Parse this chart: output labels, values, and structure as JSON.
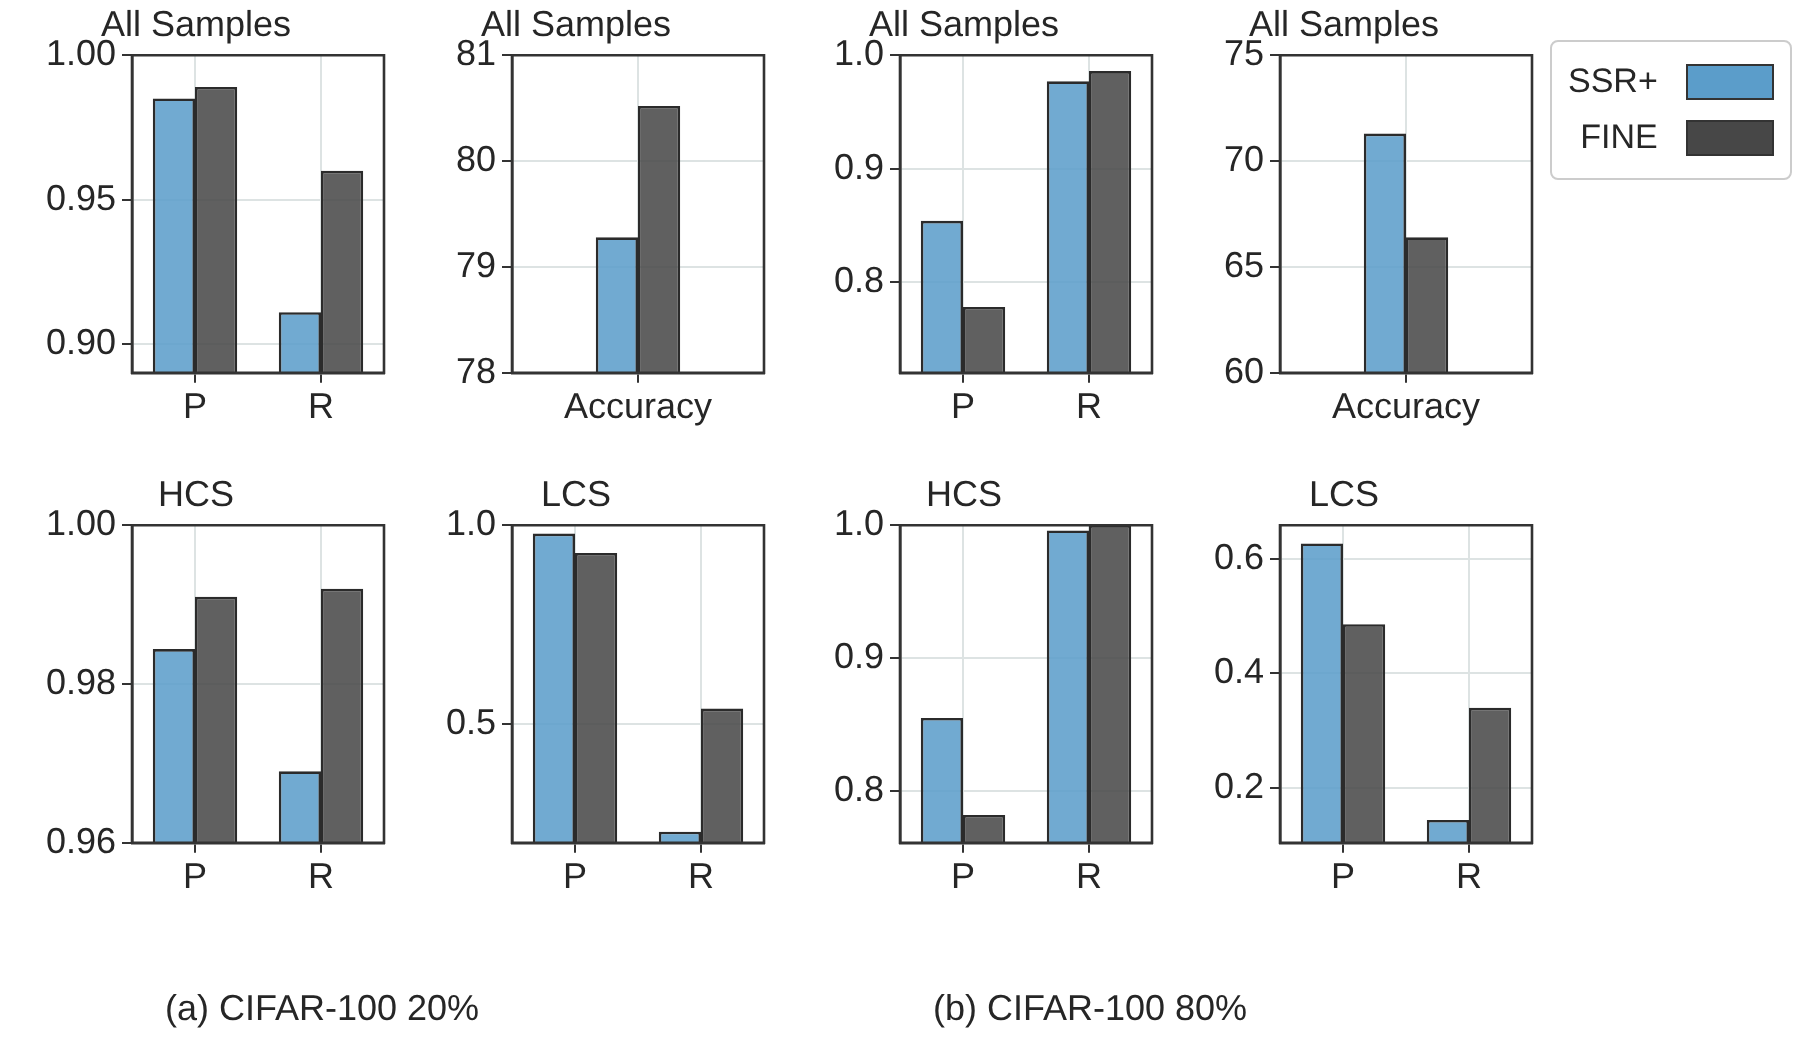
{
  "chart_data": [
    {
      "type": "bar",
      "title": "All Samples",
      "categories": [
        "P",
        "R"
      ],
      "series": [
        {
          "color": "#5b9dca",
          "values": [
            0.985,
            0.911
          ]
        },
        {
          "color": "#474747",
          "values": [
            0.989,
            0.96
          ]
        }
      ],
      "ylim": [
        0.89,
        1.0
      ],
      "yticks": [
        {
          "value": 0.9,
          "label": "0.90"
        },
        {
          "value": 0.95,
          "label": "0.95"
        },
        {
          "value": 1.0,
          "label": "1.00"
        }
      ],
      "grid": true,
      "annotations": [
        "(a) CIFAR-100 20%"
      ]
    },
    {
      "type": "bar",
      "title": "All Samples",
      "categories": [
        "Accuracy"
      ],
      "series": [
        {
          "color": "#5b9dca",
          "values": [
            79.28
          ]
        },
        {
          "color": "#474747",
          "values": [
            80.52
          ]
        }
      ],
      "ylim": [
        78,
        81
      ],
      "yticks": [
        78,
        79,
        80,
        81
      ],
      "grid": true
    },
    {
      "type": "bar",
      "title": "All Samples",
      "categories": [
        "P",
        "R"
      ],
      "series": [
        {
          "color": "#5b9dca",
          "values": [
            0.854,
            0.977
          ]
        },
        {
          "color": "#474747",
          "values": [
            0.778,
            0.986
          ]
        }
      ],
      "ylim": [
        0.72,
        1.0
      ],
      "yticks": [
        0.8,
        0.9,
        {
          "value": 1.0,
          "label": "1.0"
        }
      ],
      "grid": true,
      "annotations": [
        "(b) CIFAR-100 80%"
      ]
    },
    {
      "type": "bar",
      "title": "All Samples",
      "categories": [
        "Accuracy"
      ],
      "series": [
        {
          "name": "SSR+",
          "color": "#5b9dca",
          "values": [
            71.3
          ]
        },
        {
          "name": "FINE",
          "color": "#474747",
          "values": [
            66.4
          ]
        }
      ],
      "ylim": [
        60,
        75
      ],
      "yticks": [
        60,
        65,
        70,
        75
      ],
      "grid": true,
      "legend": "right"
    },
    {
      "type": "bar",
      "title": "HCS",
      "categories": [
        "P",
        "R"
      ],
      "series": [
        {
          "color": "#5b9dca",
          "values": [
            0.9844,
            0.969
          ]
        },
        {
          "color": "#474747",
          "values": [
            0.991,
            0.992
          ]
        }
      ],
      "ylim": [
        0.96,
        1.0
      ],
      "yticks": [
        {
          "value": 0.96,
          "label": "0.96"
        },
        {
          "value": 0.98,
          "label": "0.98"
        },
        {
          "value": 1.0,
          "label": "1.00"
        }
      ],
      "grid": true
    },
    {
      "type": "bar",
      "title": "LCS",
      "categories": [
        "P",
        "R"
      ],
      "series": [
        {
          "color": "#5b9dca",
          "values": [
            0.979,
            0.228
          ]
        },
        {
          "color": "#474747",
          "values": [
            0.93,
            0.538
          ]
        }
      ],
      "ylim": [
        0.2,
        1.0
      ],
      "yticks": [
        0.5,
        {
          "value": 1.0,
          "label": "1.0"
        }
      ],
      "grid": true
    },
    {
      "type": "bar",
      "title": "HCS",
      "categories": [
        "P",
        "R"
      ],
      "series": [
        {
          "color": "#5b9dca",
          "values": [
            0.855,
            0.996
          ]
        },
        {
          "color": "#474747",
          "values": [
            0.782,
            1.0
          ]
        }
      ],
      "ylim": [
        0.761,
        1.0
      ],
      "yticks": [
        0.8,
        0.9,
        {
          "value": 1.0,
          "label": "1.0"
        }
      ],
      "grid": true
    },
    {
      "type": "bar",
      "title": "LCS",
      "categories": [
        "P",
        "R"
      ],
      "series": [
        {
          "color": "#5b9dca",
          "values": [
            0.627,
            0.144
          ]
        },
        {
          "color": "#474747",
          "values": [
            0.486,
            0.34
          ]
        }
      ],
      "ylim": [
        0.104,
        0.659
      ],
      "yticks": [
        0.2,
        0.4,
        0.6
      ],
      "grid": true
    }
  ]
}
